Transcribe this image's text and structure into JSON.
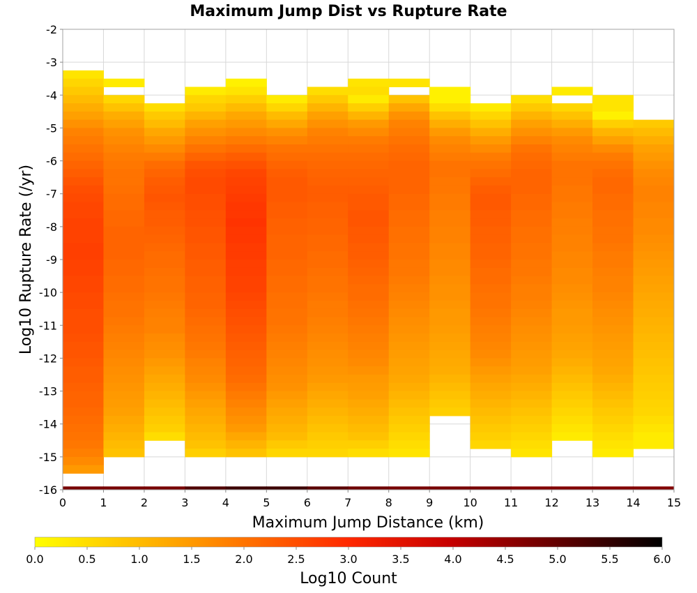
{
  "chart_data": {
    "type": "heatmap",
    "title": "Maximum Jump Dist vs Rupture Rate",
    "xlabel": "Maximum Jump Distance (km)",
    "ylabel": "Log10 Rupture Rate (/yr)",
    "xlim": [
      0,
      15
    ],
    "ylim": [
      -16,
      -2
    ],
    "x_ticks": [
      "0",
      "1",
      "2",
      "3",
      "4",
      "5",
      "6",
      "7",
      "8",
      "9",
      "10",
      "11",
      "12",
      "13",
      "14",
      "15"
    ],
    "y_ticks": [
      "-2",
      "-3",
      "-4",
      "-5",
      "-6",
      "-7",
      "-8",
      "-9",
      "-10",
      "-11",
      "-12",
      "-13",
      "-14",
      "-15",
      "-16"
    ],
    "x_bins": [
      0,
      1,
      2,
      3,
      4,
      5,
      6,
      7,
      8,
      9,
      10,
      11,
      12,
      13,
      14
    ],
    "y_bin_width": 0.25,
    "colorbar": {
      "label": "Log10 Count",
      "min": 0.0,
      "max": 6.0,
      "ticks": [
        "0.0",
        "0.5",
        "1.0",
        "1.5",
        "2.0",
        "2.5",
        "3.0",
        "3.5",
        "4.0",
        "4.5",
        "5.0",
        "5.5",
        "6.0"
      ],
      "colors": [
        "#ffff00",
        "#ff9900",
        "#ff2800",
        "#c80000",
        "#000000"
      ]
    },
    "columns": [
      {
        "x": 0,
        "top": -3.25,
        "values": [
          0.4,
          0.6,
          0.8,
          1.0,
          1.2,
          1.4,
          1.6,
          1.8,
          1.9,
          2.0,
          2.1,
          2.2,
          2.3,
          2.4,
          2.5,
          2.55,
          2.6,
          2.6,
          2.65,
          2.65,
          2.65,
          2.7,
          2.7,
          2.65,
          2.65,
          2.6,
          2.6,
          2.55,
          2.55,
          2.5,
          2.5,
          2.5,
          2.45,
          2.4,
          2.4,
          2.35,
          2.3,
          2.3,
          2.25,
          2.2,
          2.2,
          2.15,
          2.1,
          2.05,
          2.0,
          1.95,
          1.85,
          1.7,
          1.5
        ]
      },
      {
        "x": 1,
        "top": -3.5,
        "values": [
          0.3,
          null,
          0.6,
          0.9,
          1.2,
          1.4,
          1.6,
          1.7,
          1.8,
          1.9,
          1.95,
          2.0,
          2.0,
          2.05,
          2.1,
          2.1,
          2.15,
          2.15,
          2.2,
          2.2,
          2.2,
          2.2,
          2.15,
          2.15,
          2.1,
          2.1,
          2.05,
          2.0,
          2.0,
          1.95,
          1.9,
          1.85,
          1.8,
          1.75,
          1.7,
          1.65,
          1.6,
          1.55,
          1.5,
          1.45,
          1.4,
          1.3,
          1.2,
          1.1,
          1.0,
          0.9
        ]
      },
      {
        "x": 2,
        "top": -4.25,
        "values": [
          0.5,
          0.8,
          1.0,
          1.3,
          1.5,
          1.7,
          1.9,
          2.1,
          2.2,
          2.3,
          2.35,
          2.4,
          2.35,
          2.3,
          2.3,
          2.25,
          2.2,
          2.15,
          2.1,
          2.1,
          2.05,
          2.0,
          2.0,
          1.95,
          1.9,
          1.85,
          1.8,
          1.8,
          1.7,
          1.65,
          1.6,
          1.5,
          1.4,
          1.3,
          1.2,
          1.1,
          1.0,
          0.9,
          0.8,
          0.7,
          0.5
        ]
      },
      {
        "x": 3,
        "top": -3.75,
        "values": [
          0.3,
          0.6,
          0.8,
          1.1,
          1.4,
          1.6,
          1.8,
          2.0,
          2.2,
          2.4,
          2.5,
          2.55,
          2.55,
          2.5,
          2.5,
          2.45,
          2.45,
          2.4,
          2.4,
          2.35,
          2.35,
          2.3,
          2.3,
          2.25,
          2.25,
          2.2,
          2.2,
          2.15,
          2.1,
          2.05,
          2.0,
          1.95,
          1.9,
          1.8,
          1.75,
          1.7,
          1.6,
          1.5,
          1.4,
          1.3,
          1.2,
          1.1,
          1.0,
          0.9,
          0.7
        ]
      },
      {
        "x": 4,
        "top": -3.5,
        "values": [
          0.2,
          0.4,
          0.7,
          1.0,
          1.3,
          1.5,
          1.7,
          1.9,
          2.1,
          2.3,
          2.45,
          2.6,
          2.65,
          2.7,
          2.75,
          2.8,
          2.8,
          2.85,
          2.8,
          2.8,
          2.75,
          2.75,
          2.7,
          2.7,
          2.65,
          2.65,
          2.6,
          2.55,
          2.5,
          2.45,
          2.4,
          2.35,
          2.3,
          2.25,
          2.2,
          2.15,
          2.1,
          2.0,
          1.9,
          1.8,
          1.7,
          1.6,
          1.5,
          1.3,
          1.1,
          0.9
        ]
      },
      {
        "x": 5,
        "top": -4.0,
        "values": [
          0.3,
          0.6,
          1.0,
          1.3,
          1.6,
          1.8,
          2.0,
          2.1,
          2.2,
          2.3,
          2.35,
          2.35,
          2.35,
          2.3,
          2.3,
          2.25,
          2.25,
          2.2,
          2.2,
          2.2,
          2.15,
          2.15,
          2.1,
          2.1,
          2.05,
          2.05,
          2.0,
          2.0,
          1.95,
          1.9,
          1.85,
          1.8,
          1.75,
          1.7,
          1.65,
          1.6,
          1.5,
          1.4,
          1.3,
          1.2,
          1.1,
          1.0,
          0.8,
          0.6
        ]
      },
      {
        "x": 6,
        "top": -3.75,
        "values": [
          0.5,
          0.8,
          1.1,
          1.4,
          1.6,
          1.8,
          1.9,
          2.0,
          2.1,
          2.15,
          2.2,
          2.25,
          2.3,
          2.3,
          2.25,
          2.25,
          2.2,
          2.2,
          2.15,
          2.15,
          2.1,
          2.1,
          2.05,
          2.0,
          2.0,
          1.95,
          1.9,
          1.9,
          1.85,
          1.8,
          1.75,
          1.7,
          1.65,
          1.6,
          1.55,
          1.5,
          1.4,
          1.3,
          1.2,
          1.1,
          1.0,
          0.9,
          0.8,
          0.7,
          0.6
        ]
      },
      {
        "x": 7,
        "top": -3.5,
        "values": [
          0.4,
          0.5,
          0.3,
          0.7,
          1.1,
          1.5,
          1.7,
          1.9,
          2.0,
          2.1,
          2.15,
          2.2,
          2.25,
          2.3,
          2.35,
          2.35,
          2.4,
          2.4,
          2.35,
          2.35,
          2.3,
          2.3,
          2.25,
          2.2,
          2.15,
          2.1,
          2.1,
          2.05,
          2.0,
          1.95,
          1.9,
          1.85,
          1.8,
          1.75,
          1.7,
          1.6,
          1.5,
          1.45,
          1.4,
          1.3,
          1.2,
          1.1,
          1.0,
          0.9,
          0.7,
          0.5
        ]
      },
      {
        "x": 8,
        "top": -3.5,
        "values": [
          0.4,
          null,
          0.9,
          1.3,
          1.6,
          1.8,
          1.9,
          2.0,
          2.1,
          2.15,
          2.2,
          2.2,
          2.2,
          2.2,
          2.15,
          2.15,
          2.1,
          2.1,
          2.05,
          2.05,
          2.0,
          2.0,
          1.95,
          1.95,
          1.9,
          1.85,
          1.8,
          1.75,
          1.7,
          1.65,
          1.6,
          1.55,
          1.5,
          1.45,
          1.4,
          1.35,
          1.3,
          1.2,
          1.1,
          1.0,
          0.9,
          0.8,
          0.7,
          0.6,
          0.5,
          0.4
        ]
      },
      {
        "x": 9,
        "top": -3.75,
        "values": [
          0.2,
          0.2,
          0.5,
          0.9,
          1.2,
          1.5,
          1.7,
          1.8,
          1.9,
          2.0,
          2.0,
          1.95,
          1.95,
          1.9,
          1.9,
          1.85,
          1.85,
          1.8,
          1.8,
          1.75,
          1.75,
          1.7,
          1.7,
          1.65,
          1.6,
          1.6,
          1.55,
          1.5,
          1.5,
          1.45,
          1.4,
          1.35,
          1.3,
          1.25,
          1.2,
          1.1,
          1.0,
          0.9,
          0.8,
          0.7
        ]
      },
      {
        "x": 10,
        "top": -4.25,
        "values": [
          0.3,
          0.6,
          0.9,
          1.2,
          1.5,
          1.7,
          1.9,
          2.0,
          2.1,
          2.2,
          2.3,
          2.35,
          2.35,
          2.3,
          2.3,
          2.25,
          2.25,
          2.2,
          2.2,
          2.15,
          2.1,
          2.1,
          2.05,
          2.0,
          2.0,
          1.95,
          1.9,
          1.85,
          1.8,
          1.75,
          1.7,
          1.6,
          1.5,
          1.4,
          1.3,
          1.2,
          1.1,
          1.0,
          0.9,
          0.8,
          0.7,
          0.6
        ]
      },
      {
        "x": 11,
        "top": -4.0,
        "values": [
          0.5,
          0.8,
          1.1,
          1.4,
          1.6,
          1.8,
          2.0,
          2.1,
          2.15,
          2.2,
          2.2,
          2.2,
          2.15,
          2.15,
          2.1,
          2.1,
          2.05,
          2.05,
          2.0,
          2.0,
          1.95,
          1.95,
          1.9,
          1.85,
          1.85,
          1.8,
          1.75,
          1.7,
          1.65,
          1.6,
          1.55,
          1.5,
          1.45,
          1.4,
          1.3,
          1.2,
          1.1,
          1.0,
          0.9,
          0.8,
          0.7,
          0.6,
          0.5,
          0.4
        ]
      },
      {
        "x": 12,
        "top": -3.75,
        "values": [
          0.3,
          null,
          0.6,
          0.9,
          1.2,
          1.5,
          1.7,
          1.8,
          1.9,
          2.0,
          2.0,
          2.0,
          1.95,
          1.95,
          1.9,
          1.9,
          1.85,
          1.85,
          1.8,
          1.8,
          1.75,
          1.75,
          1.7,
          1.7,
          1.65,
          1.6,
          1.55,
          1.5,
          1.5,
          1.45,
          1.4,
          1.35,
          1.3,
          1.2,
          1.1,
          1.0,
          0.9,
          0.8,
          0.7,
          0.6,
          0.5,
          0.4,
          0.3
        ]
      },
      {
        "x": 13,
        "top": -4.0,
        "values": [
          0.4,
          0.4,
          0.2,
          0.7,
          1.1,
          1.4,
          1.7,
          1.9,
          2.0,
          2.1,
          2.15,
          2.15,
          2.1,
          2.1,
          2.05,
          2.05,
          2.0,
          2.0,
          1.95,
          1.9,
          1.9,
          1.85,
          1.8,
          1.8,
          1.75,
          1.7,
          1.65,
          1.6,
          1.55,
          1.5,
          1.45,
          1.4,
          1.35,
          1.3,
          1.2,
          1.1,
          1.0,
          0.9,
          0.8,
          0.7,
          0.6,
          0.5,
          0.4,
          0.3
        ]
      },
      {
        "x": 14,
        "top": -4.75,
        "values": [
          0.8,
          1.0,
          1.2,
          1.4,
          1.5,
          1.6,
          1.7,
          1.75,
          1.8,
          1.8,
          1.75,
          1.75,
          1.7,
          1.7,
          1.65,
          1.6,
          1.55,
          1.5,
          1.45,
          1.4,
          1.35,
          1.3,
          1.25,
          1.2,
          1.15,
          1.1,
          1.05,
          1.0,
          0.95,
          0.9,
          0.85,
          0.8,
          0.75,
          0.7,
          0.65,
          0.6,
          0.5,
          0.4,
          0.3,
          0.3
        ]
      }
    ],
    "bottom_row": {
      "y": -16,
      "height": 0.1,
      "values": [
        4.8,
        4.8,
        4.8,
        5.2,
        5.4,
        5.4,
        5.1,
        4.9,
        4.8,
        4.8,
        4.8,
        4.7,
        4.7,
        4.7,
        4.7
      ]
    }
  }
}
